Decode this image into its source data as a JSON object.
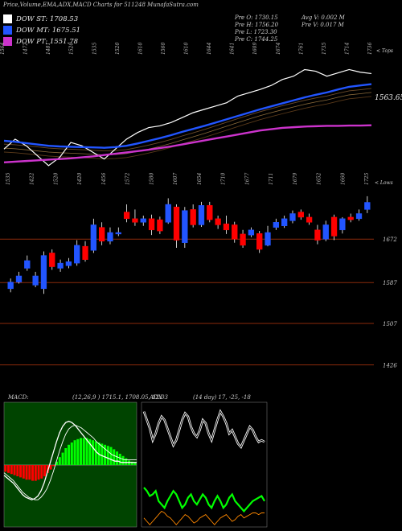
{
  "header": {
    "title": "Price,Volume,EMA,ADX,MACD Charts for 511248 MunafaSutra.com"
  },
  "legend": [
    {
      "label": "DOW ST: 1708.53",
      "color": "#ffffff"
    },
    {
      "label": "DOW MT: 1675.51",
      "color": "#2255ff"
    },
    {
      "label": "DOW PT: 1551.78",
      "color": "#cc33cc"
    }
  ],
  "stats": {
    "prev_open": "Pre  O: 1730.15",
    "prev_high": "Pre  H: 1756.20",
    "prev_low": "Pre  L: 1723.30",
    "prev_close": "Pre  C: 1744.25",
    "avg_volume": "Avg V: 0.002  M",
    "prev_volume": "Pre  V: 0.017 M"
  },
  "panels": {
    "ema_top_label": "< Tops",
    "ema_value_label": "1563.65",
    "price_lows_label": "< Lows",
    "macd_title": "MACD:",
    "macd_params": "(12,26,9 ) 1715.1,  1708.05, 12.03",
    "adx_title": "ADX",
    "adx_params": "(14  day) 17,  -25,  -18"
  },
  "colors": {
    "up_candle": "#2255ff",
    "down_candle": "#ff0000",
    "ema_short": "#ffffff",
    "ema_mid": "#2255ff",
    "ema_long": "#cc33cc",
    "level_line": "#8b2a0a",
    "macd_pos": "#00ff00",
    "macd_neg": "#ff0000",
    "adx_plus": "#00ff00",
    "adx_minus": "#ff8800"
  },
  "chart_data": [
    {
      "type": "line",
      "panel": "ema",
      "top_labels": [
        "1564",
        "1472",
        "1481",
        "1520",
        "1535",
        "1520",
        "1610",
        "1560",
        "1610",
        "1644",
        "1641",
        "1609",
        "1674",
        "1761",
        "1735",
        "1714",
        "1736"
      ],
      "value_label": "1563.65",
      "series": [
        {
          "values": [
            1480,
            1510,
            1490,
            1460,
            1430,
            1455,
            1500,
            1490,
            1470,
            1450,
            1480,
            1510,
            1530,
            1545,
            1550,
            1560,
            1575,
            1590,
            1600,
            1610,
            1620,
            1640,
            1650,
            1660,
            1672,
            1690,
            1700,
            1720,
            1715,
            1700,
            1710,
            1720,
            1712,
            1708
          ]
        },
        {
          "values": [
            1505,
            1502,
            1498,
            1494,
            1490,
            1488,
            1487,
            1486,
            1485,
            1484,
            1486,
            1490,
            1497,
            1505,
            1513,
            1522,
            1532,
            1541,
            1550,
            1560,
            1570,
            1580,
            1590,
            1600,
            1609,
            1618,
            1627,
            1636,
            1644,
            1651,
            1660,
            1668,
            1672,
            1676
          ]
        },
        {
          "values": [
            1440,
            1442,
            1444,
            1446,
            1448,
            1450,
            1452,
            1455,
            1458,
            1462,
            1466,
            1470,
            1474,
            1478,
            1483,
            1488,
            1494,
            1500,
            1506,
            1512,
            1518,
            1524,
            1530,
            1536,
            1540,
            1544,
            1546,
            1548,
            1549,
            1550,
            1550,
            1551,
            1551,
            1552
          ]
        }
      ]
    },
    {
      "type": "bar",
      "panel": "price",
      "bottom_labels": [
        "1535",
        "1422",
        "1520",
        "1420",
        "1456",
        "1572",
        "1580",
        "1607",
        "1654",
        "1710",
        "1677",
        "1711",
        "1679",
        "1652",
        "1660",
        "1725"
      ],
      "levels": [
        "1672",
        "1587",
        "1507",
        "1426"
      ],
      "candles": [
        {
          "o": 1575,
          "c": 1588,
          "h": 1595,
          "l": 1568
        },
        {
          "o": 1588,
          "c": 1600,
          "h": 1608,
          "l": 1585
        },
        {
          "o": 1615,
          "c": 1630,
          "h": 1640,
          "l": 1610
        },
        {
          "o": 1582,
          "c": 1600,
          "h": 1608,
          "l": 1578
        },
        {
          "o": 1575,
          "c": 1640,
          "h": 1648,
          "l": 1565
        },
        {
          "o": 1645,
          "c": 1618,
          "h": 1652,
          "l": 1612
        },
        {
          "o": 1615,
          "c": 1625,
          "h": 1632,
          "l": 1608
        },
        {
          "o": 1620,
          "c": 1628,
          "h": 1635,
          "l": 1615
        },
        {
          "o": 1625,
          "c": 1660,
          "h": 1670,
          "l": 1620
        },
        {
          "o": 1658,
          "c": 1632,
          "h": 1668,
          "l": 1628
        },
        {
          "o": 1650,
          "c": 1700,
          "h": 1712,
          "l": 1645
        },
        {
          "o": 1695,
          "c": 1668,
          "h": 1705,
          "l": 1660
        },
        {
          "o": 1668,
          "c": 1685,
          "h": 1695,
          "l": 1662
        },
        {
          "o": 1682,
          "c": 1685,
          "h": 1695,
          "l": 1678
        },
        {
          "o": 1725,
          "c": 1712,
          "h": 1740,
          "l": 1705
        },
        {
          "o": 1712,
          "c": 1705,
          "h": 1730,
          "l": 1698
        },
        {
          "o": 1705,
          "c": 1712,
          "h": 1718,
          "l": 1698
        },
        {
          "o": 1712,
          "c": 1690,
          "h": 1720,
          "l": 1680
        },
        {
          "o": 1710,
          "c": 1688,
          "h": 1716,
          "l": 1682
        },
        {
          "o": 1705,
          "c": 1740,
          "h": 1752,
          "l": 1702
        },
        {
          "o": 1735,
          "c": 1670,
          "h": 1740,
          "l": 1655
        },
        {
          "o": 1665,
          "c": 1728,
          "h": 1735,
          "l": 1655
        },
        {
          "o": 1730,
          "c": 1700,
          "h": 1740,
          "l": 1695
        },
        {
          "o": 1700,
          "c": 1738,
          "h": 1745,
          "l": 1696
        },
        {
          "o": 1738,
          "c": 1710,
          "h": 1745,
          "l": 1705
        },
        {
          "o": 1712,
          "c": 1700,
          "h": 1718,
          "l": 1692
        },
        {
          "o": 1702,
          "c": 1690,
          "h": 1718,
          "l": 1682
        },
        {
          "o": 1700,
          "c": 1672,
          "h": 1706,
          "l": 1665
        },
        {
          "o": 1682,
          "c": 1660,
          "h": 1690,
          "l": 1655
        },
        {
          "o": 1680,
          "c": 1690,
          "h": 1695,
          "l": 1676
        },
        {
          "o": 1683,
          "c": 1652,
          "h": 1688,
          "l": 1645
        },
        {
          "o": 1660,
          "c": 1685,
          "h": 1698,
          "l": 1658
        },
        {
          "o": 1695,
          "c": 1705,
          "h": 1712,
          "l": 1690
        },
        {
          "o": 1698,
          "c": 1712,
          "h": 1718,
          "l": 1694
        },
        {
          "o": 1708,
          "c": 1722,
          "h": 1728,
          "l": 1703
        },
        {
          "o": 1725,
          "c": 1715,
          "h": 1730,
          "l": 1710
        },
        {
          "o": 1715,
          "c": 1705,
          "h": 1722,
          "l": 1700
        },
        {
          "o": 1690,
          "c": 1670,
          "h": 1700,
          "l": 1662
        },
        {
          "o": 1672,
          "c": 1700,
          "h": 1708,
          "l": 1668
        },
        {
          "o": 1715,
          "c": 1678,
          "h": 1720,
          "l": 1670
        },
        {
          "o": 1690,
          "c": 1712,
          "h": 1715,
          "l": 1683
        },
        {
          "o": 1715,
          "c": 1710,
          "h": 1722,
          "l": 1705
        },
        {
          "o": 1712,
          "c": 1722,
          "h": 1730,
          "l": 1708
        },
        {
          "o": 1730,
          "c": 1744,
          "h": 1756,
          "l": 1723
        }
      ]
    },
    {
      "type": "bar",
      "panel": "macd",
      "histogram": [
        -6,
        -7,
        -8,
        -9,
        -10,
        -11,
        -12,
        -13,
        -13,
        -14,
        -14,
        -13,
        -12,
        -10,
        -7,
        -4,
        -1,
        3,
        7,
        11,
        15,
        18,
        20,
        22,
        23,
        24,
        24,
        24,
        23,
        22,
        21,
        20,
        19,
        18,
        17,
        16,
        14,
        12,
        10,
        8,
        6,
        4,
        3,
        2
      ],
      "series": [
        {
          "values": [
            -8,
            -10,
            -12,
            -14,
            -17,
            -20,
            -23,
            -25,
            -26,
            -27,
            -26,
            -24,
            -20,
            -14,
            -6,
            2,
            10,
            18,
            25,
            30,
            33,
            34,
            33,
            31,
            28,
            25,
            22,
            19,
            16,
            13,
            10,
            8,
            7,
            6,
            5,
            4,
            3,
            3,
            2,
            2,
            2,
            2,
            2,
            2
          ]
        },
        {
          "values": [
            -6,
            -8,
            -10,
            -12,
            -15,
            -18,
            -21,
            -23,
            -25,
            -26,
            -27,
            -27,
            -25,
            -22,
            -18,
            -12,
            -5,
            3,
            11,
            18,
            24,
            28,
            30,
            31,
            30,
            29,
            27,
            25,
            23,
            21,
            18,
            16,
            14,
            12,
            10,
            8,
            7,
            6,
            5,
            4,
            4,
            4,
            4,
            4
          ]
        }
      ]
    },
    {
      "type": "line",
      "panel": "adx",
      "series": [
        {
          "values": [
            35,
            30,
            25,
            18,
            22,
            28,
            32,
            30,
            25,
            20,
            15,
            18,
            24,
            30,
            34,
            32,
            26,
            22,
            20,
            24,
            30,
            28,
            22,
            18,
            24,
            30,
            35,
            32,
            28,
            22,
            24,
            20,
            16,
            14,
            18,
            22,
            26,
            24,
            20,
            17,
            18,
            17
          ]
        },
        {
          "values": [
            -10,
            -12,
            -15,
            -14,
            -12,
            -18,
            -20,
            -22,
            -18,
            -15,
            -12,
            -14,
            -18,
            -22,
            -20,
            -16,
            -14,
            -18,
            -20,
            -17,
            -14,
            -16,
            -20,
            -22,
            -18,
            -15,
            -18,
            -22,
            -20,
            -16,
            -14,
            -18,
            -20,
            -22,
            -24,
            -22,
            -20,
            -18,
            -17,
            -16,
            -15,
            -18
          ]
        },
        {
          "values": [
            -28,
            -30,
            -32,
            -30,
            -28,
            -26,
            -24,
            -25,
            -27,
            -28,
            -30,
            -32,
            -30,
            -28,
            -26,
            -27,
            -29,
            -31,
            -30,
            -28,
            -27,
            -26,
            -28,
            -30,
            -32,
            -30,
            -28,
            -27,
            -26,
            -28,
            -30,
            -29,
            -27,
            -26,
            -28,
            -27,
            -26,
            -25,
            -25,
            -26,
            -25,
            -25
          ]
        }
      ]
    }
  ]
}
